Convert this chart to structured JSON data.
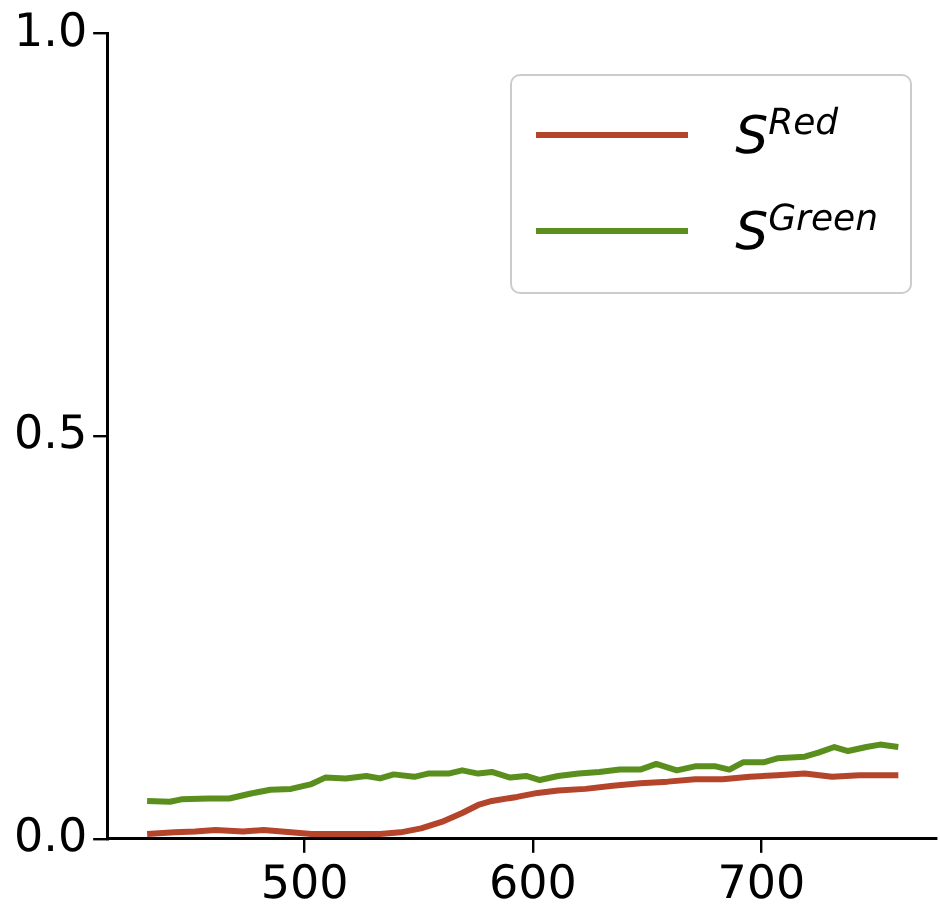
{
  "chart_data": {
    "type": "line",
    "x": [
      431,
      441,
      446,
      458,
      467,
      476,
      485,
      494,
      503,
      509,
      518,
      527,
      533,
      539,
      548,
      554,
      563,
      569,
      576,
      582,
      590,
      597,
      603,
      611,
      620,
      629,
      638,
      647,
      654,
      663,
      671,
      680,
      686,
      692,
      701,
      707,
      719,
      725,
      732,
      738,
      746,
      752,
      760
    ],
    "series": [
      {
        "name": "S$^{Red}$",
        "color": "#b5452a",
        "x": [
          431,
          443,
          452,
          461,
          473,
          482,
          494,
          503,
          518,
          533,
          542,
          551,
          560,
          569,
          576,
          582,
          593,
          602,
          611,
          623,
          635,
          647,
          659,
          671,
          683,
          695,
          707,
          719,
          731,
          743,
          760
        ],
        "values": [
          0.006,
          0.008,
          0.009,
          0.011,
          0.009,
          0.011,
          0.008,
          0.006,
          0.006,
          0.006,
          0.008,
          0.013,
          0.021,
          0.032,
          0.042,
          0.047,
          0.052,
          0.057,
          0.06,
          0.062,
          0.066,
          0.069,
          0.071,
          0.074,
          0.074,
          0.077,
          0.079,
          0.081,
          0.077,
          0.079,
          0.079
        ]
      },
      {
        "name": "S$^{Green}$",
        "color": "#5a8f1e",
        "values": [
          0.047,
          0.046,
          0.049,
          0.05,
          0.05,
          0.056,
          0.061,
          0.062,
          0.068,
          0.076,
          0.075,
          0.078,
          0.075,
          0.08,
          0.077,
          0.081,
          0.081,
          0.085,
          0.081,
          0.083,
          0.076,
          0.078,
          0.073,
          0.078,
          0.081,
          0.083,
          0.086,
          0.086,
          0.093,
          0.085,
          0.09,
          0.09,
          0.086,
          0.095,
          0.095,
          0.1,
          0.102,
          0.107,
          0.114,
          0.109,
          0.114,
          0.117,
          0.114
        ]
      }
    ],
    "xlim": [
      413.5,
      776.5
    ],
    "xticks": [
      500,
      600,
      700
    ],
    "ylim": [
      0,
      1
    ],
    "yticks": [
      {
        "value": 0,
        "label": "0.0"
      },
      {
        "value": 0.5,
        "label": "0.5"
      },
      {
        "value": 1,
        "label": "1.0"
      }
    ],
    "legend": "top right",
    "line_style": "solid",
    "marker": "none"
  }
}
